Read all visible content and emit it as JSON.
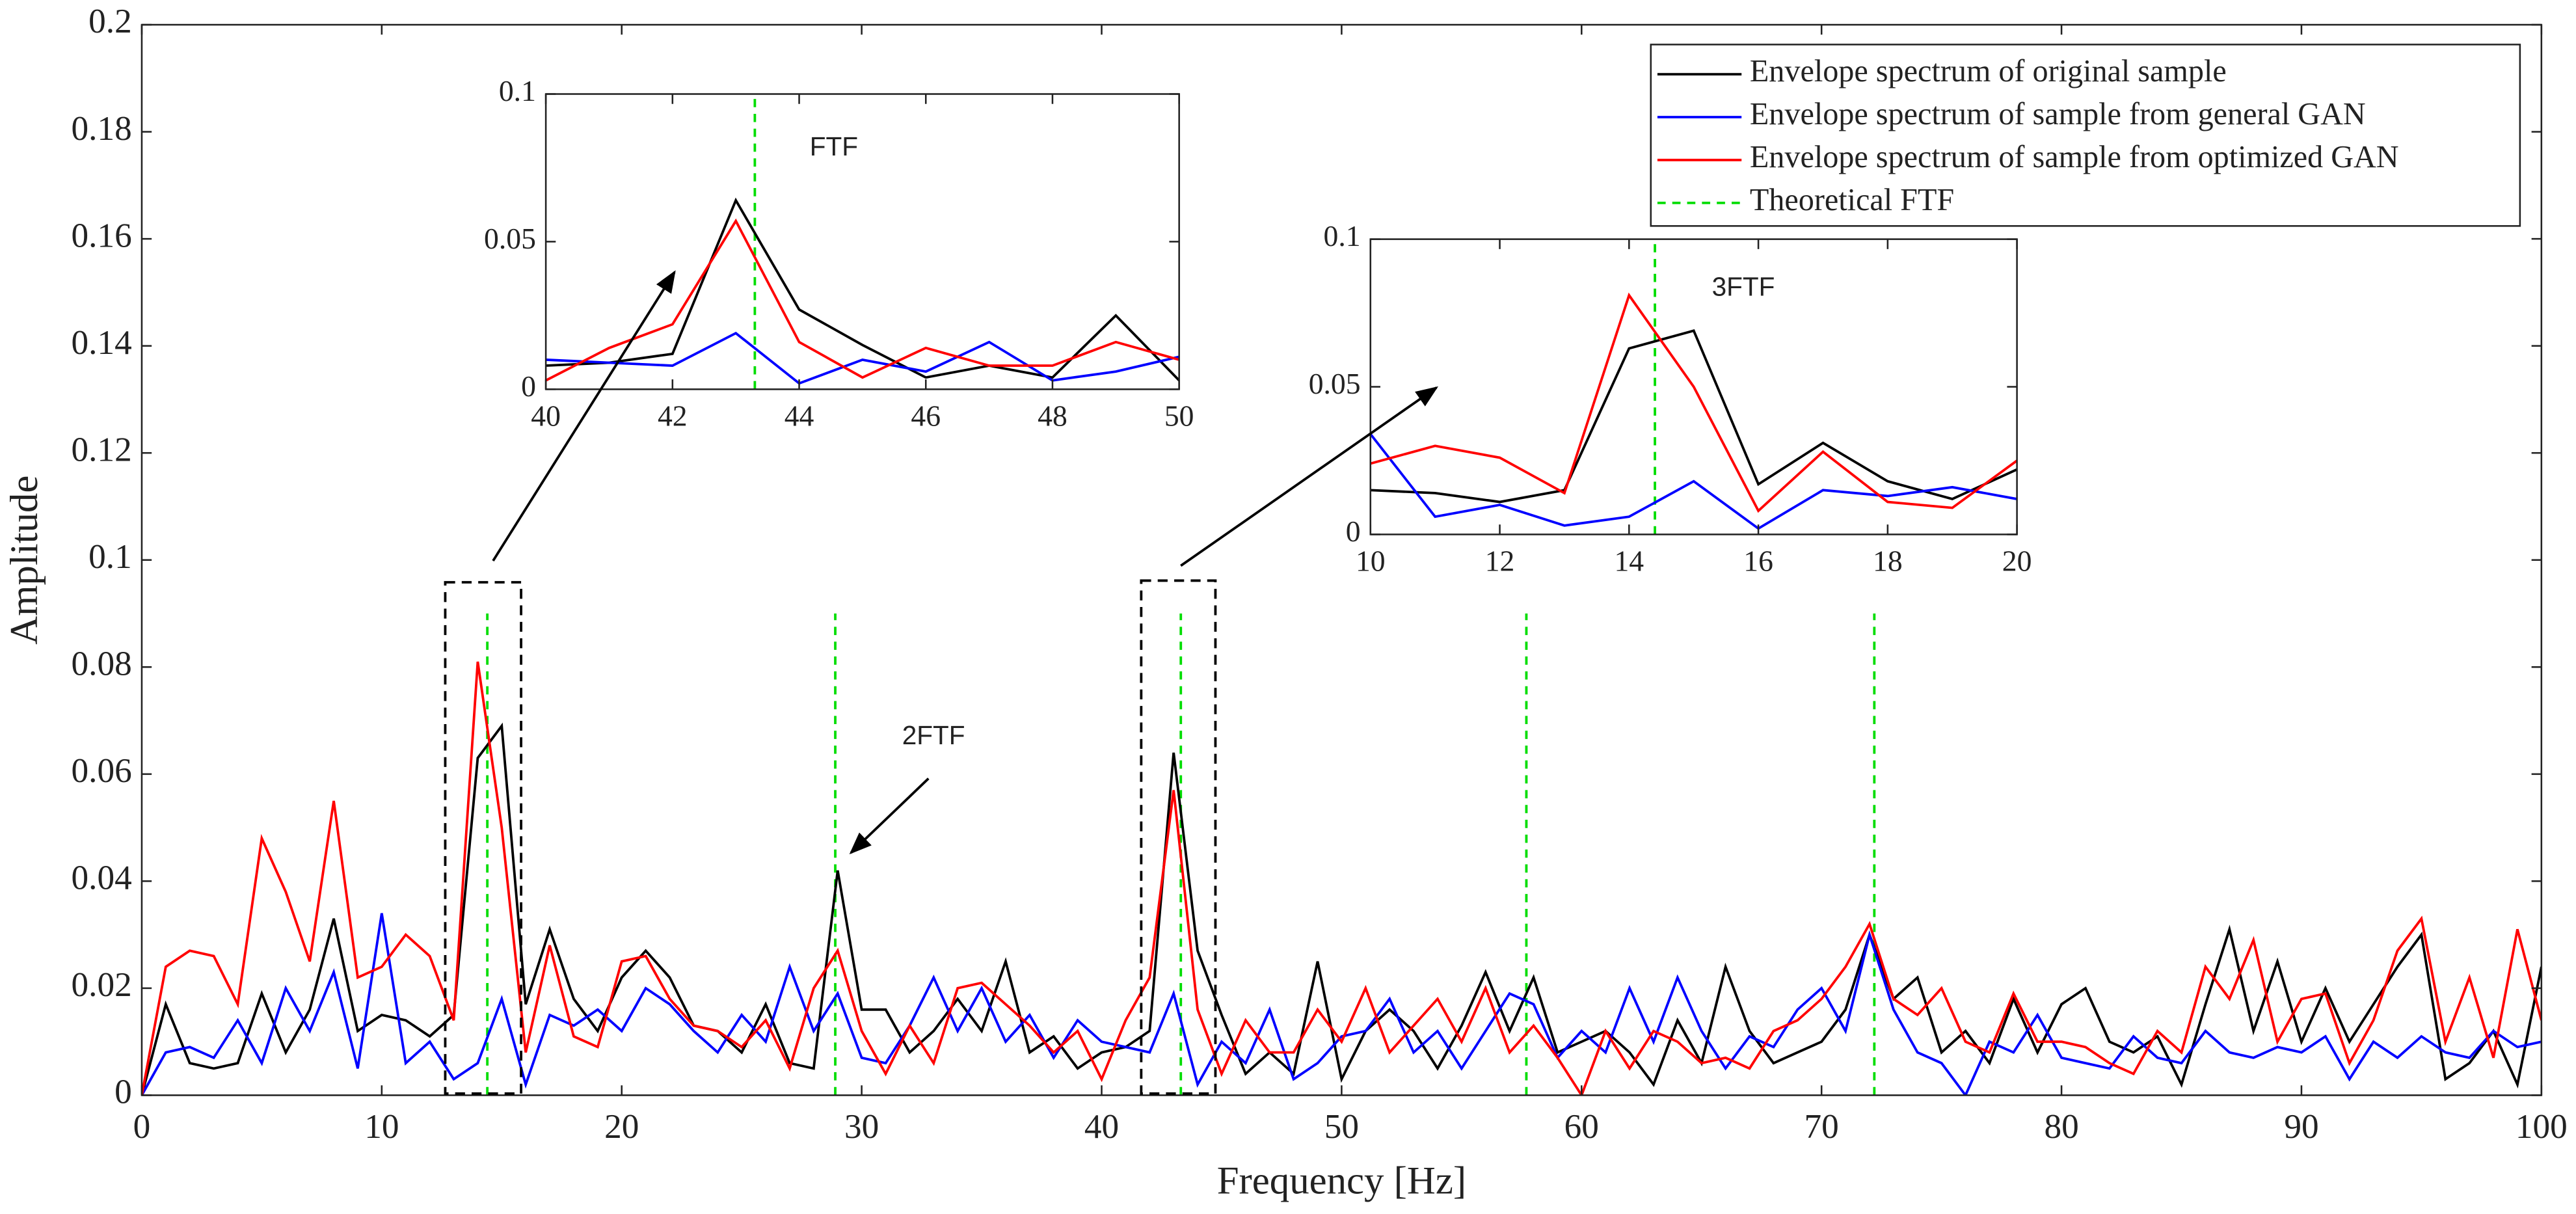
{
  "chart_data": [
    {
      "type": "line",
      "xlabel": "Frequency [Hz]",
      "ylabel": "Amplitude",
      "x": [
        0,
        1,
        2,
        3,
        4,
        5,
        6,
        7,
        8,
        9,
        10,
        11,
        12,
        13,
        14,
        15,
        16,
        17,
        18,
        19,
        20,
        21,
        22,
        23,
        24,
        25,
        26,
        27,
        28,
        29,
        30,
        31,
        32,
        33,
        34,
        35,
        36,
        37,
        38,
        39,
        40,
        41,
        42,
        43,
        44,
        45,
        46,
        47,
        48,
        49,
        50,
        51,
        52,
        53,
        54,
        55,
        56,
        57,
        58,
        59,
        60,
        61,
        62,
        63,
        64,
        65,
        66,
        67,
        68,
        69,
        70,
        71,
        72,
        73,
        74,
        75,
        76,
        77,
        78,
        79,
        80,
        81,
        82,
        83,
        84,
        85,
        86,
        87,
        88,
        89,
        90,
        91,
        92,
        93,
        94,
        95,
        96,
        97,
        98,
        99,
        100
      ],
      "series": [
        {
          "name": "Envelope spectrum of original sample",
          "color": "#000000",
          "values": [
            0,
            0.017,
            0.006,
            0.005,
            0.006,
            0.019,
            0.008,
            0.016,
            0.033,
            0.012,
            0.015,
            0.014,
            0.011,
            0.015,
            0.063,
            0.069,
            0.017,
            0.031,
            0.018,
            0.012,
            0.022,
            0.027,
            0.022,
            0.013,
            0.012,
            0.008,
            0.017,
            0.006,
            0.005,
            0.042,
            0.016,
            0.016,
            0.008,
            0.012,
            0.018,
            0.012,
            0.025,
            0.008,
            0.011,
            0.005,
            0.008,
            0.009,
            0.012,
            0.064,
            0.027,
            0.015,
            0.004,
            0.008,
            0.004,
            0.025,
            0.003,
            0.012,
            0.016,
            0.012,
            0.005,
            0.013,
            0.023,
            0.012,
            0.022,
            0.008,
            0.01,
            0.012,
            0.008,
            0.002,
            0.014,
            0.006,
            0.024,
            0.012,
            0.006,
            0.008,
            0.01,
            0.016,
            0.03,
            0.018,
            0.022,
            0.008,
            0.012,
            0.006,
            0.018,
            0.008,
            0.017,
            0.02,
            0.01,
            0.008,
            0.011,
            0.002,
            0.017,
            0.031,
            0.012,
            0.025,
            0.01,
            0.02,
            0.01,
            0.017,
            0.024,
            0.03,
            0.003,
            0.006,
            0.012,
            0.002,
            0.024
          ]
        },
        {
          "name": "Envelope spectrum of sample from general GAN",
          "color": "#0000ff",
          "values": [
            0,
            0.008,
            0.009,
            0.007,
            0.014,
            0.006,
            0.02,
            0.012,
            0.023,
            0.005,
            0.034,
            0.006,
            0.01,
            0.003,
            0.006,
            0.018,
            0.002,
            0.015,
            0.013,
            0.016,
            0.012,
            0.02,
            0.017,
            0.012,
            0.008,
            0.015,
            0.01,
            0.024,
            0.012,
            0.019,
            0.007,
            0.006,
            0.013,
            0.022,
            0.012,
            0.02,
            0.01,
            0.015,
            0.007,
            0.014,
            0.01,
            0.009,
            0.008,
            0.019,
            0.002,
            0.01,
            0.006,
            0.016,
            0.003,
            0.006,
            0.011,
            0.012,
            0.018,
            0.008,
            0.012,
            0.005,
            0.012,
            0.019,
            0.017,
            0.007,
            0.012,
            0.008,
            0.02,
            0.01,
            0.022,
            0.012,
            0.005,
            0.011,
            0.009,
            0.016,
            0.02,
            0.012,
            0.03,
            0.016,
            0.008,
            0.006,
            0,
            0.01,
            0.008,
            0.015,
            0.007,
            0.006,
            0.005,
            0.011,
            0.007,
            0.006,
            0.012,
            0.008,
            0.007,
            0.009,
            0.008,
            0.011,
            0.003,
            0.01,
            0.007,
            0.011,
            0.008,
            0.007,
            0.012,
            0.009,
            0.01
          ]
        },
        {
          "name": "Envelope spectrum of sample from optimized GAN",
          "color": "#ff0000",
          "values": [
            0,
            0.024,
            0.027,
            0.026,
            0.017,
            0.048,
            0.038,
            0.025,
            0.055,
            0.022,
            0.024,
            0.03,
            0.026,
            0.014,
            0.081,
            0.05,
            0.008,
            0.028,
            0.011,
            0.009,
            0.025,
            0.026,
            0.018,
            0.013,
            0.012,
            0.009,
            0.014,
            0.005,
            0.02,
            0.027,
            0.012,
            0.004,
            0.013,
            0.006,
            0.02,
            0.021,
            0.017,
            0.013,
            0.008,
            0.012,
            0.003,
            0.014,
            0.022,
            0.057,
            0.016,
            0.004,
            0.014,
            0.008,
            0.008,
            0.016,
            0.01,
            0.02,
            0.008,
            0.013,
            0.018,
            0.01,
            0.02,
            0.008,
            0.013,
            0.007,
            0,
            0.012,
            0.005,
            0.012,
            0.01,
            0.006,
            0.007,
            0.005,
            0.012,
            0.014,
            0.018,
            0.024,
            0.032,
            0.018,
            0.015,
            0.02,
            0.01,
            0.008,
            0.019,
            0.01,
            0.01,
            0.009,
            0.006,
            0.004,
            0.012,
            0.008,
            0.024,
            0.018,
            0.029,
            0.01,
            0.018,
            0.019,
            0.006,
            0.014,
            0.027,
            0.033,
            0.01,
            0.022,
            0.007,
            0.031,
            0.014
          ]
        }
      ],
      "reference": {
        "name": "Theoretical FTF",
        "color": "#00dd00",
        "x": [
          14.4,
          28.9,
          43.3,
          57.7,
          72.2
        ],
        "yrange": [
          0,
          0.09
        ]
      },
      "annotations": [
        "FTF",
        "2FTF",
        "3FTF"
      ],
      "xlim": [
        0,
        100
      ],
      "xticks": [
        0,
        10,
        20,
        30,
        40,
        50,
        60,
        70,
        80,
        90,
        100
      ],
      "ylim": [
        0,
        0.2
      ],
      "yticks": [
        0,
        0.02,
        0.04,
        0.06,
        0.08,
        0.1,
        0.12,
        0.14,
        0.16,
        0.18,
        0.2
      ],
      "legend": "upper right"
    },
    {
      "type": "inset",
      "xlim": [
        40,
        50
      ],
      "xticks": [
        40,
        42,
        44,
        46,
        48,
        50
      ],
      "ylim": [
        0,
        0.1
      ],
      "yticks": [
        0,
        0.05,
        0.1
      ]
    },
    {
      "type": "inset",
      "xlim": [
        10,
        20
      ],
      "xticks": [
        10,
        12,
        14,
        16,
        18,
        20
      ],
      "ylim": [
        0,
        0.1
      ],
      "yticks": [
        0,
        0.05,
        0.1
      ]
    }
  ]
}
